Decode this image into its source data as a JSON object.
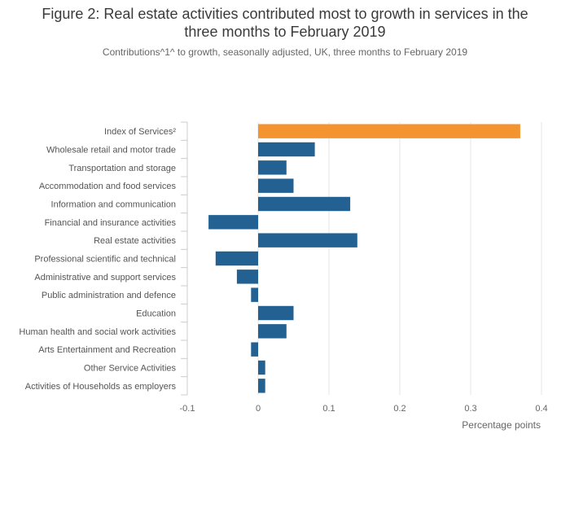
{
  "header": {
    "title_line1": "Figure 2: Real estate activities contributed most to growth in services in the",
    "title_line2": "three months to February 2019",
    "subtitle": "Contributions^1^ to growth, seasonally adjusted, UK, three months to February 2019"
  },
  "colors": {
    "default_bar": "#236192",
    "highlight_bar": "#f39431"
  },
  "chart_data": {
    "type": "bar",
    "orientation": "horizontal",
    "title": "Figure 2: Real estate activities contributed most to growth in services in the three months to February 2019",
    "subtitle": "Contributions^1^ to growth, seasonally adjusted, UK, three months to February 2019",
    "xlabel": "Percentage points",
    "ylabel": "",
    "xlim": [
      -0.1,
      0.4
    ],
    "xticks": [
      -0.1,
      0,
      0.1,
      0.2,
      0.3,
      0.4
    ],
    "xtick_labels": [
      "-0.1",
      "0",
      "0.1",
      "0.2",
      "0.3",
      "0.4"
    ],
    "grid": true,
    "categories": [
      "Index of Services²",
      "Wholesale retail and motor trade",
      "Transportation and storage",
      "Accommodation and food services",
      "Information and communication",
      "Financial and insurance activities",
      "Real estate activities",
      "Professional scientific and technical",
      "Administrative and support services",
      "Public administration and defence",
      "Education",
      "Human health and social work activities",
      "Arts Entertainment and Recreation",
      "Other Service Activities",
      "Activities of Households as employers"
    ],
    "values": [
      0.37,
      0.08,
      0.04,
      0.05,
      0.13,
      -0.07,
      0.14,
      -0.06,
      -0.03,
      -0.01,
      0.05,
      0.04,
      -0.01,
      0.01,
      0.01
    ],
    "highlight_index": 0
  }
}
